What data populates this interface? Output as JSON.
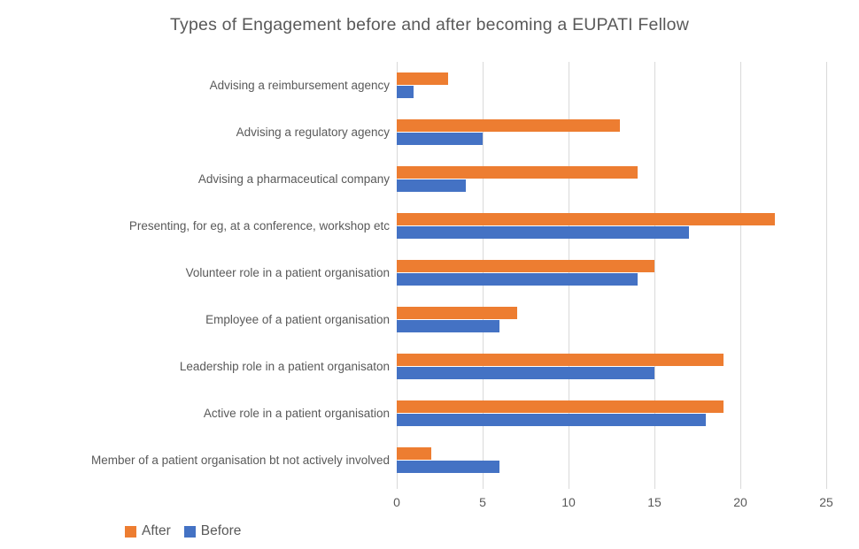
{
  "chart_data": {
    "type": "bar",
    "orientation": "horizontal",
    "title": "Types of Engagement before and after becoming a EUPATI Fellow",
    "categories": [
      "Advising a reimbursement agency",
      "Advising a regulatory agency",
      "Advising a pharmaceutical company",
      "Presenting, for eg, at a conference, workshop etc",
      "Volunteer role in a patient organisation",
      "Employee of a patient organisation",
      "Leadership role in a patient organisaton",
      "Active role in a patient organisation",
      "Member of a patient organisation bt not actively involved"
    ],
    "series": [
      {
        "name": "After",
        "color": "#ED7D31",
        "values": [
          3,
          13,
          14,
          22,
          15,
          7,
          19,
          19,
          2
        ]
      },
      {
        "name": "Before",
        "color": "#4472C4",
        "values": [
          1,
          5,
          4,
          17,
          14,
          6,
          15,
          18,
          6
        ]
      }
    ],
    "x_axis": {
      "ticks": [
        0,
        5,
        10,
        15,
        20,
        25
      ],
      "min": 0,
      "max": 25
    },
    "grid": "vertical",
    "legend_position": "bottom-left",
    "colors": {
      "after": "#ED7D31",
      "before": "#4472C4",
      "text": "#595959",
      "gridline": "#D9D9D9"
    }
  },
  "legend": {
    "after_label": "After",
    "before_label": "Before"
  }
}
